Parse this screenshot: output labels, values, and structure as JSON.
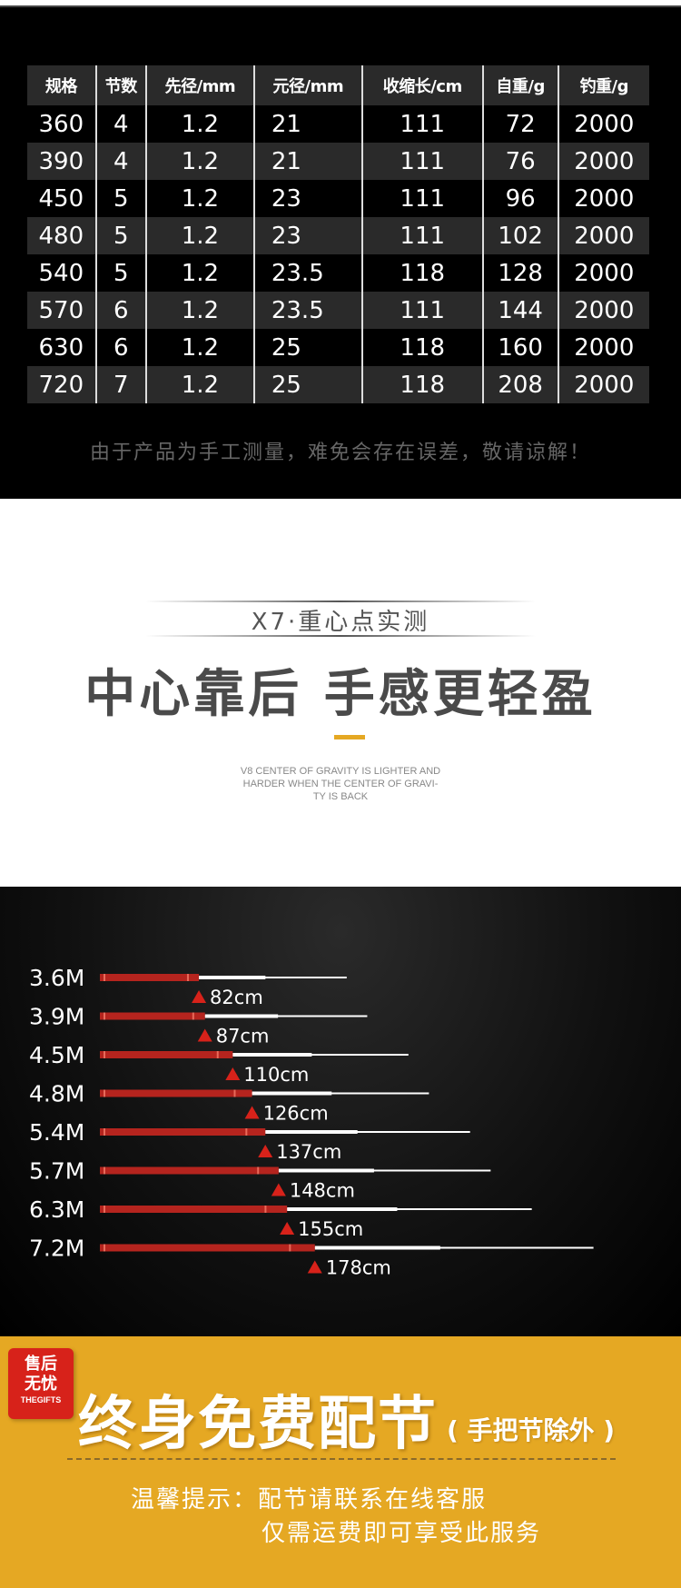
{
  "spec": {
    "headers": [
      "规格",
      "节数",
      "先径/mm",
      "元径/mm",
      "收缩长/cm",
      "自重/g",
      "钓重/g"
    ],
    "rows": [
      [
        "360",
        "4",
        "1.2",
        "21",
        "111",
        "72",
        "2000"
      ],
      [
        "390",
        "4",
        "1.2",
        "21",
        "111",
        "76",
        "2000"
      ],
      [
        "450",
        "5",
        "1.2",
        "23",
        "111",
        "96",
        "2000"
      ],
      [
        "480",
        "5",
        "1.2",
        "23",
        "111",
        "102",
        "2000"
      ],
      [
        "540",
        "5",
        "1.2",
        "23.5",
        "118",
        "128",
        "2000"
      ],
      [
        "570",
        "6",
        "1.2",
        "23.5",
        "111",
        "144",
        "2000"
      ],
      [
        "630",
        "6",
        "1.2",
        "25",
        "118",
        "160",
        "2000"
      ],
      [
        "720",
        "7",
        "1.2",
        "25",
        "118",
        "208",
        "2000"
      ]
    ],
    "note": "由于产品为手工测量，难免会存在误差，敬请谅解！"
  },
  "cog": {
    "subtitle": "X7·重心点实测",
    "title": "中心靠后  手感更轻盈",
    "en_line1": "V8 CENTER OF GRAVITY IS LIGHTER AND",
    "en_line2": "HARDER WHEN THE CENTER OF GRAVI-",
    "en_line3": "TY IS BACK",
    "accent_color": "#e5a823"
  },
  "rods": {
    "items": [
      {
        "length": "3.6M",
        "cg": "82cm"
      },
      {
        "length": "3.9M",
        "cg": "87cm"
      },
      {
        "length": "4.5M",
        "cg": "110cm"
      },
      {
        "length": "4.8M",
        "cg": "126cm"
      },
      {
        "length": "5.4M",
        "cg": "137cm"
      },
      {
        "length": "5.7M",
        "cg": "148cm"
      },
      {
        "length": "6.3M",
        "cg": "155cm"
      },
      {
        "length": "7.2M",
        "cg": "178cm"
      }
    ],
    "rod_color": "#b5241e",
    "marker_color": "#d7221a"
  },
  "service": {
    "badge_line1": "售后",
    "badge_line2": "无忧",
    "badge_line3": "THEGIFTS",
    "title": "终身免费配节",
    "sub": "( 手把节除外 )",
    "tip1": "温馨提示：配节请联系在线客服",
    "tip2": "仅需运费即可享受此服务",
    "bg_color": "#e5a823",
    "badge_color": "#d7221a"
  }
}
